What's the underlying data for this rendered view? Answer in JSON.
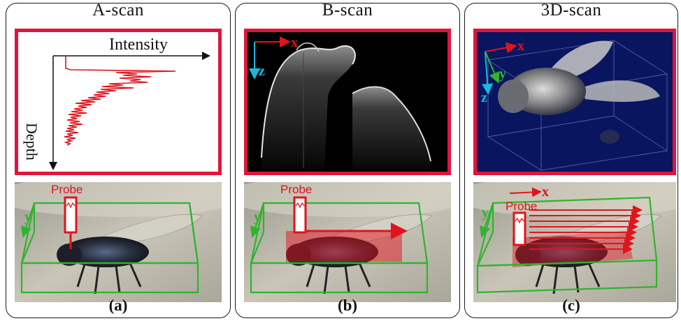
{
  "panels": [
    {
      "title": "A-scan",
      "label": "(a)"
    },
    {
      "title": "B-scan",
      "label": "(b)"
    },
    {
      "title": "3D-scan",
      "label": "(c)"
    }
  ],
  "ascan": {
    "xlabel": "Intensity",
    "ylabel": "Depth"
  },
  "axes": {
    "x": "x",
    "y": "y",
    "z": "z"
  },
  "probe_label": "Probe",
  "colors": {
    "frame": "#e0143c",
    "box": "#2db52d",
    "probe": "#e0141e",
    "z_axis": "#19b8e0",
    "volume_bg": "#0a1560"
  }
}
